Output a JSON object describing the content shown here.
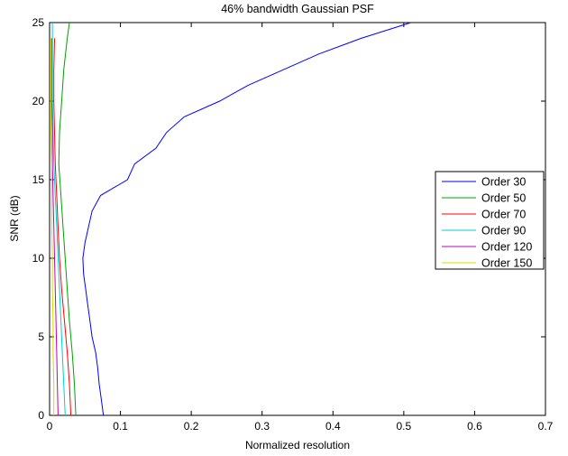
{
  "chart_data": {
    "type": "line",
    "title": "46% bandwidth Gaussian PSF",
    "xlabel": "Normalized resolution",
    "ylabel": "SNR (dB)",
    "xlim": [
      0,
      0.7
    ],
    "ylim": [
      0,
      25
    ],
    "xticks": [
      "0",
      "0.1",
      "0.2",
      "0.3",
      "0.4",
      "0.5",
      "0.6",
      "0.7"
    ],
    "yticks": [
      "0",
      "5",
      "10",
      "15",
      "20",
      "25"
    ],
    "grid": false,
    "legend_position": "right",
    "series": [
      {
        "name": "Order 30",
        "color": "#0000ff",
        "points": [
          [
            0.076,
            0
          ],
          [
            0.073,
            1
          ],
          [
            0.07,
            2
          ],
          [
            0.068,
            3
          ],
          [
            0.065,
            4
          ],
          [
            0.06,
            5
          ],
          [
            0.057,
            6
          ],
          [
            0.054,
            7
          ],
          [
            0.051,
            8
          ],
          [
            0.048,
            9
          ],
          [
            0.047,
            10
          ],
          [
            0.05,
            11
          ],
          [
            0.055,
            12
          ],
          [
            0.06,
            13
          ],
          [
            0.072,
            14
          ],
          [
            0.11,
            15
          ],
          [
            0.12,
            16
          ],
          [
            0.15,
            17
          ],
          [
            0.165,
            18
          ],
          [
            0.19,
            19
          ],
          [
            0.24,
            20
          ],
          [
            0.28,
            21
          ],
          [
            0.33,
            22
          ],
          [
            0.38,
            23
          ],
          [
            0.44,
            24
          ],
          [
            0.51,
            25
          ]
        ]
      },
      {
        "name": "Order 50",
        "color": "#00a000",
        "points": [
          [
            0.037,
            0
          ],
          [
            0.035,
            2
          ],
          [
            0.032,
            4
          ],
          [
            0.028,
            6
          ],
          [
            0.025,
            8
          ],
          [
            0.022,
            10
          ],
          [
            0.019,
            12
          ],
          [
            0.016,
            14
          ],
          [
            0.013,
            16
          ],
          [
            0.014,
            18
          ],
          [
            0.017,
            20
          ],
          [
            0.02,
            22
          ],
          [
            0.025,
            24
          ],
          [
            0.028,
            25
          ]
        ]
      },
      {
        "name": "Order 70",
        "color": "#ff0000",
        "points": [
          [
            0.03,
            0
          ],
          [
            0.028,
            2
          ],
          [
            0.025,
            4
          ],
          [
            0.021,
            6
          ],
          [
            0.017,
            8
          ],
          [
            0.014,
            10
          ],
          [
            0.012,
            12
          ],
          [
            0.01,
            14
          ],
          [
            0.008,
            16
          ],
          [
            0.007,
            18
          ],
          [
            0.006,
            20
          ],
          [
            0.006,
            22
          ],
          [
            0.007,
            24
          ]
        ]
      },
      {
        "name": "Order 90",
        "color": "#00d0d0",
        "points": [
          [
            0.022,
            0
          ],
          [
            0.02,
            2
          ],
          [
            0.018,
            4
          ],
          [
            0.016,
            6
          ],
          [
            0.014,
            8
          ],
          [
            0.012,
            10
          ],
          [
            0.01,
            12
          ],
          [
            0.008,
            14
          ],
          [
            0.006,
            16
          ],
          [
            0.005,
            18
          ],
          [
            0.004,
            20
          ],
          [
            0.004,
            22
          ],
          [
            0.004,
            24
          ],
          [
            0.004,
            25
          ]
        ]
      },
      {
        "name": "Order 120",
        "color": "#c000c0",
        "points": [
          [
            0.012,
            0
          ],
          [
            0.011,
            2
          ],
          [
            0.01,
            4
          ],
          [
            0.009,
            6
          ],
          [
            0.008,
            8
          ],
          [
            0.007,
            10
          ],
          [
            0.006,
            12
          ],
          [
            0.005,
            14
          ],
          [
            0.004,
            16
          ],
          [
            0.004,
            18
          ],
          [
            0.003,
            20
          ],
          [
            0.003,
            22
          ],
          [
            0.003,
            24
          ]
        ]
      },
      {
        "name": "Order 150",
        "color": "#d8d800",
        "points": [
          [
            0.006,
            0
          ],
          [
            0.006,
            2
          ],
          [
            0.005,
            4
          ],
          [
            0.005,
            6
          ],
          [
            0.004,
            8
          ],
          [
            0.004,
            10
          ],
          [
            0.003,
            12
          ],
          [
            0.003,
            14
          ],
          [
            0.003,
            16
          ],
          [
            0.002,
            18
          ],
          [
            0.002,
            20
          ],
          [
            0.002,
            22
          ],
          [
            0.002,
            24
          ]
        ]
      }
    ]
  }
}
